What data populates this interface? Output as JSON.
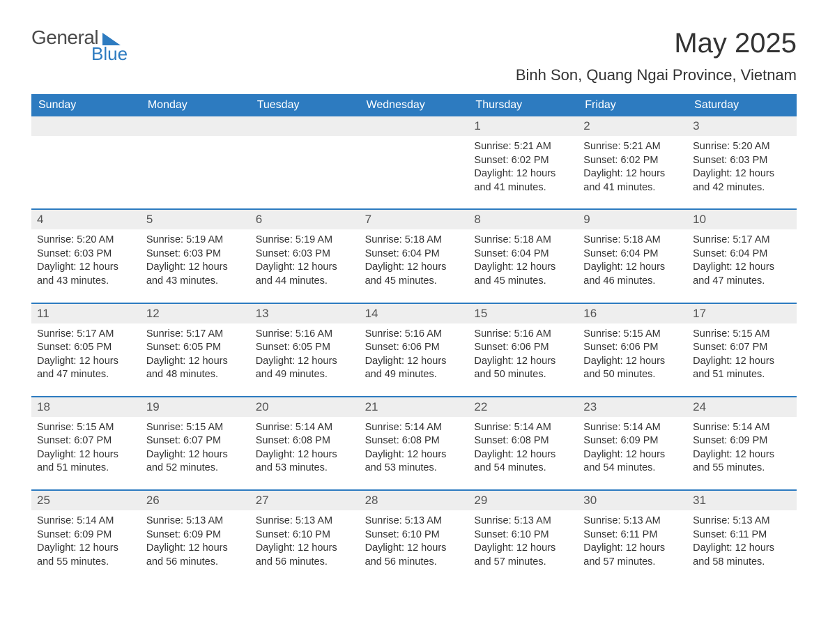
{
  "logo": {
    "text1": "General",
    "text2": "Blue"
  },
  "header": {
    "month_title": "May 2025",
    "location": "Binh Son, Quang Ngai Province, Vietnam"
  },
  "colors": {
    "brand_blue": "#2d7bc0",
    "header_gray": "#eeeeee",
    "text": "#333333",
    "bg": "#ffffff"
  },
  "weekdays": [
    "Sunday",
    "Monday",
    "Tuesday",
    "Wednesday",
    "Thursday",
    "Friday",
    "Saturday"
  ],
  "weeks": [
    [
      {
        "day": "",
        "sunrise": "",
        "sunset": "",
        "daylight": ""
      },
      {
        "day": "",
        "sunrise": "",
        "sunset": "",
        "daylight": ""
      },
      {
        "day": "",
        "sunrise": "",
        "sunset": "",
        "daylight": ""
      },
      {
        "day": "",
        "sunrise": "",
        "sunset": "",
        "daylight": ""
      },
      {
        "day": "1",
        "sunrise": "Sunrise: 5:21 AM",
        "sunset": "Sunset: 6:02 PM",
        "daylight": "Daylight: 12 hours and 41 minutes."
      },
      {
        "day": "2",
        "sunrise": "Sunrise: 5:21 AM",
        "sunset": "Sunset: 6:02 PM",
        "daylight": "Daylight: 12 hours and 41 minutes."
      },
      {
        "day": "3",
        "sunrise": "Sunrise: 5:20 AM",
        "sunset": "Sunset: 6:03 PM",
        "daylight": "Daylight: 12 hours and 42 minutes."
      }
    ],
    [
      {
        "day": "4",
        "sunrise": "Sunrise: 5:20 AM",
        "sunset": "Sunset: 6:03 PM",
        "daylight": "Daylight: 12 hours and 43 minutes."
      },
      {
        "day": "5",
        "sunrise": "Sunrise: 5:19 AM",
        "sunset": "Sunset: 6:03 PM",
        "daylight": "Daylight: 12 hours and 43 minutes."
      },
      {
        "day": "6",
        "sunrise": "Sunrise: 5:19 AM",
        "sunset": "Sunset: 6:03 PM",
        "daylight": "Daylight: 12 hours and 44 minutes."
      },
      {
        "day": "7",
        "sunrise": "Sunrise: 5:18 AM",
        "sunset": "Sunset: 6:04 PM",
        "daylight": "Daylight: 12 hours and 45 minutes."
      },
      {
        "day": "8",
        "sunrise": "Sunrise: 5:18 AM",
        "sunset": "Sunset: 6:04 PM",
        "daylight": "Daylight: 12 hours and 45 minutes."
      },
      {
        "day": "9",
        "sunrise": "Sunrise: 5:18 AM",
        "sunset": "Sunset: 6:04 PM",
        "daylight": "Daylight: 12 hours and 46 minutes."
      },
      {
        "day": "10",
        "sunrise": "Sunrise: 5:17 AM",
        "sunset": "Sunset: 6:04 PM",
        "daylight": "Daylight: 12 hours and 47 minutes."
      }
    ],
    [
      {
        "day": "11",
        "sunrise": "Sunrise: 5:17 AM",
        "sunset": "Sunset: 6:05 PM",
        "daylight": "Daylight: 12 hours and 47 minutes."
      },
      {
        "day": "12",
        "sunrise": "Sunrise: 5:17 AM",
        "sunset": "Sunset: 6:05 PM",
        "daylight": "Daylight: 12 hours and 48 minutes."
      },
      {
        "day": "13",
        "sunrise": "Sunrise: 5:16 AM",
        "sunset": "Sunset: 6:05 PM",
        "daylight": "Daylight: 12 hours and 49 minutes."
      },
      {
        "day": "14",
        "sunrise": "Sunrise: 5:16 AM",
        "sunset": "Sunset: 6:06 PM",
        "daylight": "Daylight: 12 hours and 49 minutes."
      },
      {
        "day": "15",
        "sunrise": "Sunrise: 5:16 AM",
        "sunset": "Sunset: 6:06 PM",
        "daylight": "Daylight: 12 hours and 50 minutes."
      },
      {
        "day": "16",
        "sunrise": "Sunrise: 5:15 AM",
        "sunset": "Sunset: 6:06 PM",
        "daylight": "Daylight: 12 hours and 50 minutes."
      },
      {
        "day": "17",
        "sunrise": "Sunrise: 5:15 AM",
        "sunset": "Sunset: 6:07 PM",
        "daylight": "Daylight: 12 hours and 51 minutes."
      }
    ],
    [
      {
        "day": "18",
        "sunrise": "Sunrise: 5:15 AM",
        "sunset": "Sunset: 6:07 PM",
        "daylight": "Daylight: 12 hours and 51 minutes."
      },
      {
        "day": "19",
        "sunrise": "Sunrise: 5:15 AM",
        "sunset": "Sunset: 6:07 PM",
        "daylight": "Daylight: 12 hours and 52 minutes."
      },
      {
        "day": "20",
        "sunrise": "Sunrise: 5:14 AM",
        "sunset": "Sunset: 6:08 PM",
        "daylight": "Daylight: 12 hours and 53 minutes."
      },
      {
        "day": "21",
        "sunrise": "Sunrise: 5:14 AM",
        "sunset": "Sunset: 6:08 PM",
        "daylight": "Daylight: 12 hours and 53 minutes."
      },
      {
        "day": "22",
        "sunrise": "Sunrise: 5:14 AM",
        "sunset": "Sunset: 6:08 PM",
        "daylight": "Daylight: 12 hours and 54 minutes."
      },
      {
        "day": "23",
        "sunrise": "Sunrise: 5:14 AM",
        "sunset": "Sunset: 6:09 PM",
        "daylight": "Daylight: 12 hours and 54 minutes."
      },
      {
        "day": "24",
        "sunrise": "Sunrise: 5:14 AM",
        "sunset": "Sunset: 6:09 PM",
        "daylight": "Daylight: 12 hours and 55 minutes."
      }
    ],
    [
      {
        "day": "25",
        "sunrise": "Sunrise: 5:14 AM",
        "sunset": "Sunset: 6:09 PM",
        "daylight": "Daylight: 12 hours and 55 minutes."
      },
      {
        "day": "26",
        "sunrise": "Sunrise: 5:13 AM",
        "sunset": "Sunset: 6:09 PM",
        "daylight": "Daylight: 12 hours and 56 minutes."
      },
      {
        "day": "27",
        "sunrise": "Sunrise: 5:13 AM",
        "sunset": "Sunset: 6:10 PM",
        "daylight": "Daylight: 12 hours and 56 minutes."
      },
      {
        "day": "28",
        "sunrise": "Sunrise: 5:13 AM",
        "sunset": "Sunset: 6:10 PM",
        "daylight": "Daylight: 12 hours and 56 minutes."
      },
      {
        "day": "29",
        "sunrise": "Sunrise: 5:13 AM",
        "sunset": "Sunset: 6:10 PM",
        "daylight": "Daylight: 12 hours and 57 minutes."
      },
      {
        "day": "30",
        "sunrise": "Sunrise: 5:13 AM",
        "sunset": "Sunset: 6:11 PM",
        "daylight": "Daylight: 12 hours and 57 minutes."
      },
      {
        "day": "31",
        "sunrise": "Sunrise: 5:13 AM",
        "sunset": "Sunset: 6:11 PM",
        "daylight": "Daylight: 12 hours and 58 minutes."
      }
    ]
  ]
}
